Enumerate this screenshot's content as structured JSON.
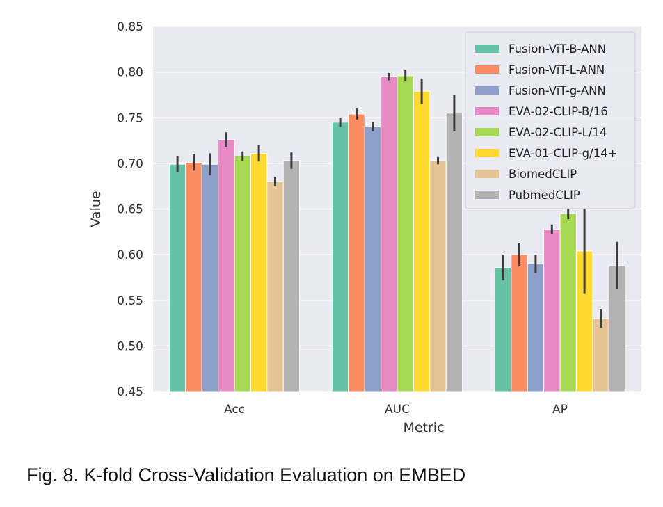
{
  "caption": "Fig. 8.  K-fold Cross-Validation Evaluation on EMBED",
  "chart_data": {
    "type": "bar",
    "title": "",
    "xlabel": "Metric",
    "ylabel": "Value",
    "ylim": [
      0.45,
      0.85
    ],
    "yticks": [
      "0.45",
      "0.50",
      "0.55",
      "0.60",
      "0.65",
      "0.70",
      "0.75",
      "0.80",
      "0.85"
    ],
    "grid": true,
    "legend": "top-right",
    "categories": [
      "Acc",
      "AUC",
      "AP"
    ],
    "series": [
      {
        "name": "Fusion-ViT-B-ANN",
        "color": "#66c2a5",
        "values": [
          0.699,
          0.745,
          0.586
        ],
        "err": [
          0.009,
          0.005,
          0.014
        ]
      },
      {
        "name": "Fusion-ViT-L-ANN",
        "color": "#fc8d62",
        "values": [
          0.701,
          0.754,
          0.6
        ],
        "err": [
          0.009,
          0.006,
          0.013
        ]
      },
      {
        "name": "Fusion-ViT-g-ANN",
        "color": "#8da0cb",
        "values": [
          0.699,
          0.74,
          0.59
        ],
        "err": [
          0.012,
          0.005,
          0.01
        ]
      },
      {
        "name": "EVA-02-CLIP-B/16",
        "color": "#e78ac3",
        "values": [
          0.726,
          0.795,
          0.628
        ],
        "err": [
          0.008,
          0.004,
          0.005
        ]
      },
      {
        "name": "EVA-02-CLIP-L/14",
        "color": "#a6d854",
        "values": [
          0.708,
          0.796,
          0.645
        ],
        "err": [
          0.005,
          0.006,
          0.006
        ]
      },
      {
        "name": "EVA-01-CLIP-g/14+",
        "color": "#ffd92f",
        "values": [
          0.711,
          0.779,
          0.604
        ],
        "err": [
          0.009,
          0.014,
          0.047
        ]
      },
      {
        "name": "BiomedCLIP",
        "color": "#e5c494",
        "values": [
          0.68,
          0.703,
          0.53
        ],
        "err": [
          0.005,
          0.004,
          0.01
        ]
      },
      {
        "name": "PubmedCLIP",
        "color": "#b3b3b3",
        "values": [
          0.703,
          0.755,
          0.588
        ],
        "err": [
          0.009,
          0.02,
          0.026
        ]
      }
    ]
  }
}
